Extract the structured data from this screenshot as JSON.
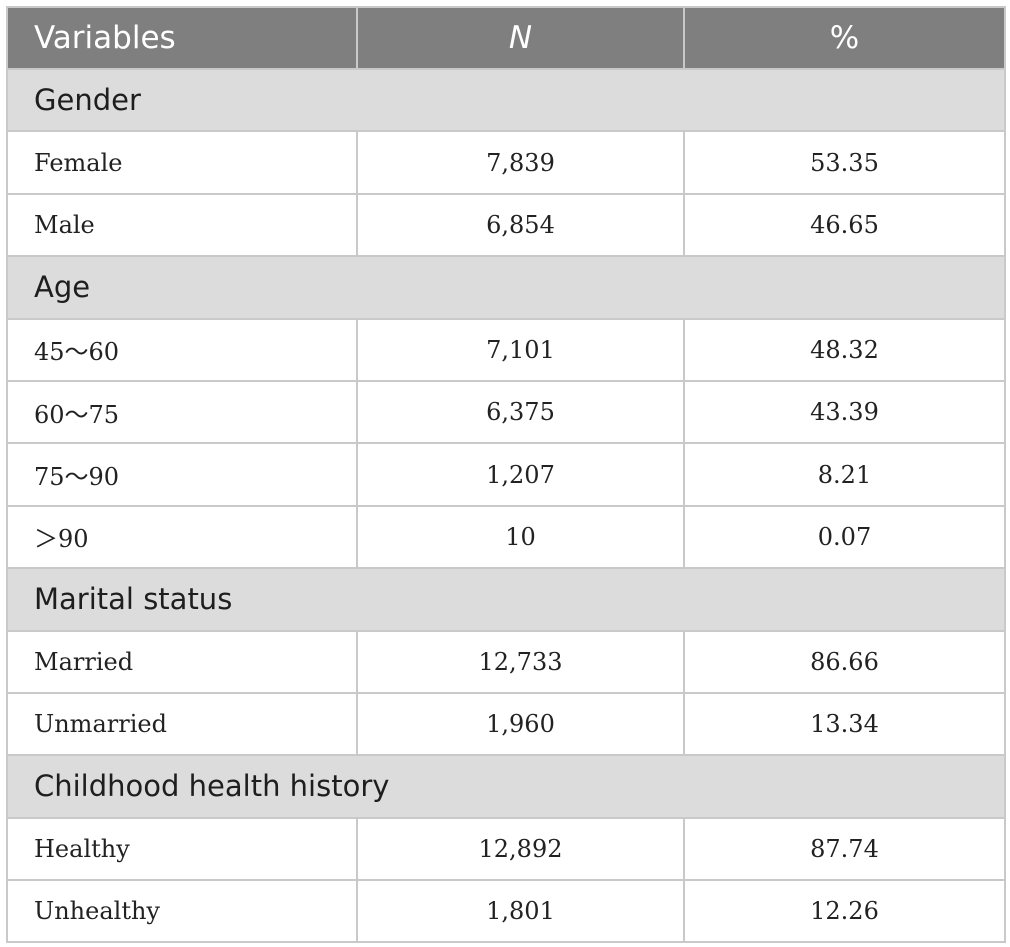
{
  "header": {
    "variables": "Variables",
    "n": "N",
    "pct": "%"
  },
  "groups": [
    {
      "title": "Gender",
      "rows": [
        {
          "label": "Female",
          "n": "7,839",
          "pct": "53.35"
        },
        {
          "label": "Male",
          "n": "6,854",
          "pct": "46.65"
        }
      ]
    },
    {
      "title": "Age",
      "rows": [
        {
          "label": "45～60",
          "n": "7,101",
          "pct": "48.32"
        },
        {
          "label": "60～75",
          "n": "6,375",
          "pct": "43.39"
        },
        {
          "label": "75～90",
          "n": "1,207",
          "pct": "8.21"
        },
        {
          "label": "＞90",
          "n": "10",
          "pct": "0.07"
        }
      ]
    },
    {
      "title": "Marital status",
      "rows": [
        {
          "label": "Married",
          "n": "12,733",
          "pct": "86.66"
        },
        {
          "label": "Unmarried",
          "n": "1,960",
          "pct": "13.34"
        }
      ]
    },
    {
      "title": "Childhood health history",
      "rows": [
        {
          "label": "Healthy",
          "n": "12,892",
          "pct": "87.74"
        },
        {
          "label": "Unhealthy",
          "n": "1,801",
          "pct": "12.26"
        }
      ]
    }
  ]
}
